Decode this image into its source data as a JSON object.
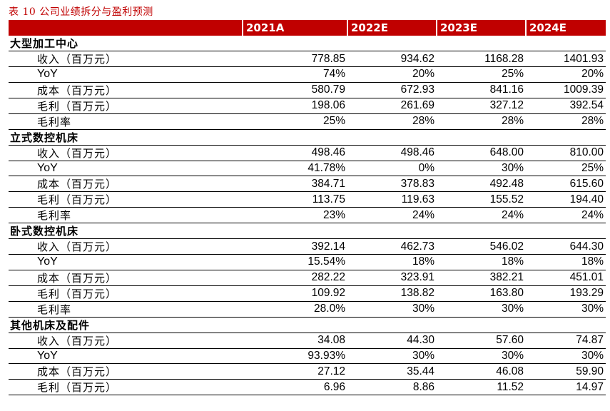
{
  "caption": "表 10 公司业绩拆分与盈利预测",
  "headers": [
    "",
    "2021A",
    "2022E",
    "2023E",
    "2024E"
  ],
  "sections": [
    {
      "title": "大型加工中心",
      "rows": [
        {
          "label": "收入（百万元）",
          "values": [
            "778.85",
            "934.62",
            "1168.28",
            "1401.93"
          ]
        },
        {
          "label": "YoY",
          "values": [
            "74%",
            "20%",
            "25%",
            "20%"
          ]
        },
        {
          "label": "成本（百万元）",
          "values": [
            "580.79",
            "672.93",
            "841.16",
            "1009.39"
          ]
        },
        {
          "label": "毛利（百万元）",
          "values": [
            "198.06",
            "261.69",
            "327.12",
            "392.54"
          ]
        },
        {
          "label": "毛利率",
          "values": [
            "25%",
            "28%",
            "28%",
            "28%"
          ]
        }
      ]
    },
    {
      "title": "立式数控机床",
      "rows": [
        {
          "label": "收入（百万元）",
          "values": [
            "498.46",
            "498.46",
            "648.00",
            "810.00"
          ]
        },
        {
          "label": "YoY",
          "values": [
            "41.78%",
            "0%",
            "30%",
            "25%"
          ]
        },
        {
          "label": "成本（百万元）",
          "values": [
            "384.71",
            "378.83",
            "492.48",
            "615.60"
          ]
        },
        {
          "label": "毛利（百万元）",
          "values": [
            "113.75",
            "119.63",
            "155.52",
            "194.40"
          ]
        },
        {
          "label": "毛利率",
          "values": [
            "23%",
            "24%",
            "24%",
            "24%"
          ]
        }
      ]
    },
    {
      "title": "卧式数控机床",
      "rows": [
        {
          "label": "收入（百万元）",
          "values": [
            "392.14",
            "462.73",
            "546.02",
            "644.30"
          ]
        },
        {
          "label": "YoY",
          "values": [
            "15.54%",
            "18%",
            "18%",
            "18%"
          ]
        },
        {
          "label": "成本（百万元）",
          "values": [
            "282.22",
            "323.91",
            "382.21",
            "451.01"
          ]
        },
        {
          "label": "毛利（百万元）",
          "values": [
            "109.92",
            "138.82",
            "163.80",
            "193.29"
          ]
        },
        {
          "label": "毛利率",
          "values": [
            "28.0%",
            "30%",
            "30%",
            "30%"
          ]
        }
      ]
    },
    {
      "title": "其他机床及配件",
      "rows": [
        {
          "label": "收入（百万元）",
          "values": [
            "34.08",
            "44.30",
            "57.60",
            "74.87"
          ]
        },
        {
          "label": "YoY",
          "values": [
            "93.93%",
            "30%",
            "30%",
            "30%"
          ]
        },
        {
          "label": "成本（百万元）",
          "values": [
            "27.12",
            "35.44",
            "46.08",
            "59.90"
          ]
        },
        {
          "label": "毛利（百万元）",
          "values": [
            "6.96",
            "8.86",
            "11.52",
            "14.97"
          ]
        }
      ]
    }
  ]
}
